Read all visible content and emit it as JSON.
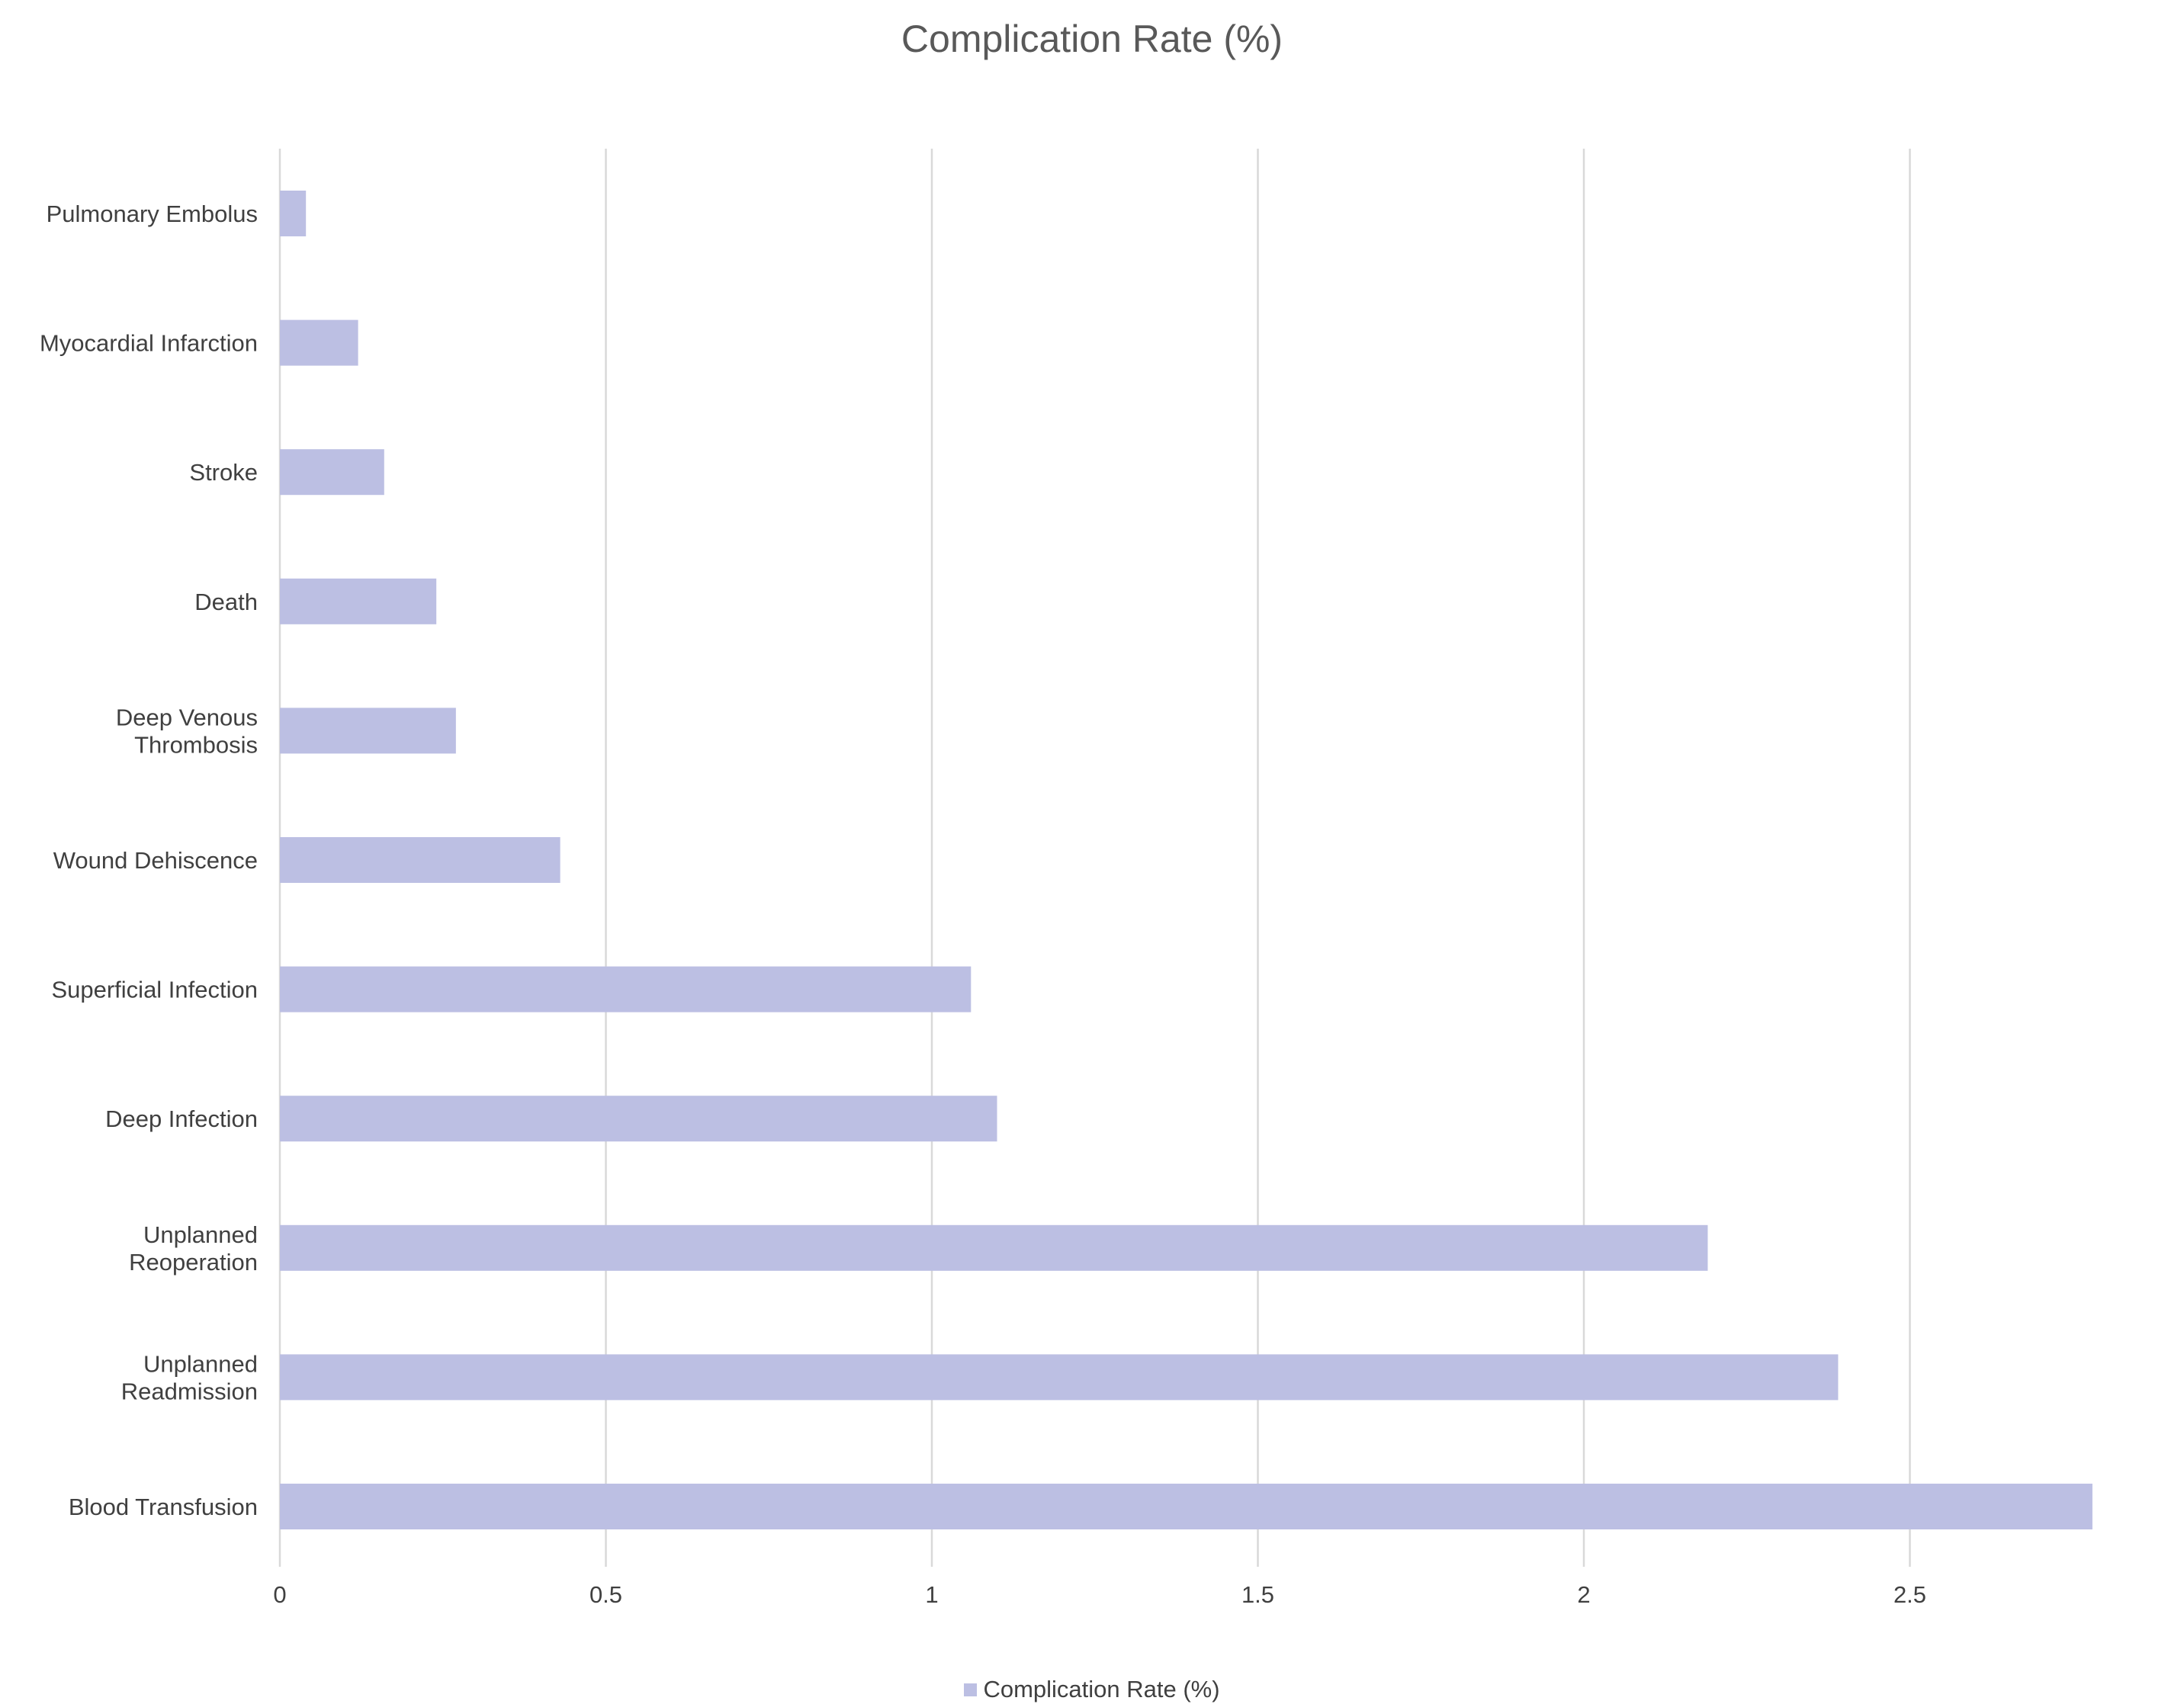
{
  "chart_data": {
    "type": "bar",
    "orientation": "horizontal",
    "title": "Complication Rate (%)",
    "xlabel": "",
    "ylabel": "",
    "categories": [
      "Pulmonary Embolus",
      "Myocardial Infarction",
      "Stroke",
      "Death",
      "Deep Venous Thrombosis",
      "Wound Dehiscence",
      "Superficial Infection",
      "Deep Infection",
      "Unplanned Reoperation",
      "Unplanned Readmission",
      "Blood Transfusion"
    ],
    "category_lines": [
      [
        "Pulmonary Embolus"
      ],
      [
        "Myocardial Infarction"
      ],
      [
        "Stroke"
      ],
      [
        "Death"
      ],
      [
        "Deep Venous",
        "Thrombosis"
      ],
      [
        "Wound Dehiscence"
      ],
      [
        "Superficial Infection"
      ],
      [
        "Deep Infection"
      ],
      [
        "Unplanned",
        "Reoperation"
      ],
      [
        "Unplanned",
        "Readmission"
      ],
      [
        "Blood Transfusion"
      ]
    ],
    "series": [
      {
        "name": "Complication Rate (%)",
        "color": "#bcbfe3",
        "values": [
          0.04,
          0.12,
          0.16,
          0.24,
          0.27,
          0.43,
          1.06,
          1.1,
          2.19,
          2.39,
          2.78
        ]
      }
    ],
    "xlim": [
      0,
      2.8
    ],
    "ticks": [
      0,
      0.5,
      1,
      1.5,
      2,
      2.5
    ],
    "tick_labels": [
      "0",
      "0.5",
      "1",
      "1.5",
      "2",
      "2.5"
    ],
    "grid": true,
    "legend_position": "bottom",
    "legend_label": "Complication Rate (%)"
  }
}
